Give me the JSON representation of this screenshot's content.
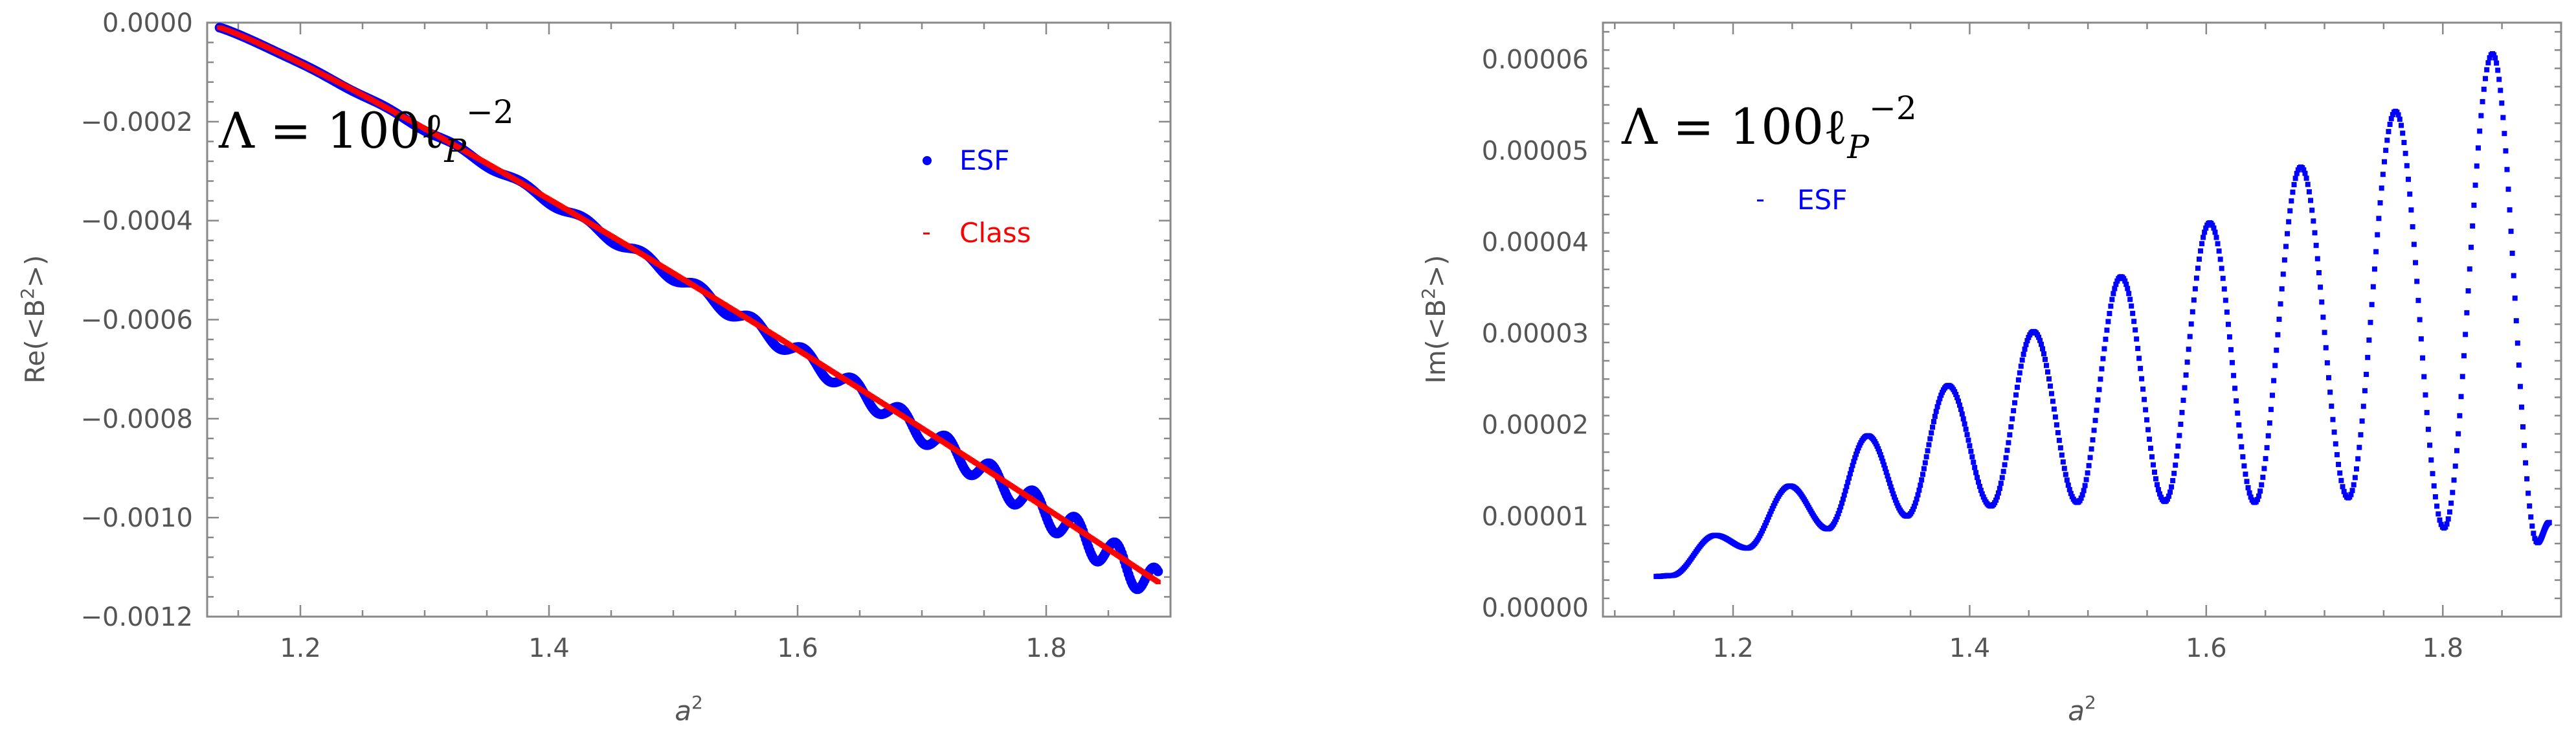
{
  "chart_data": [
    {
      "type": "scatter",
      "xlabel": "a",
      "xlabel_sup": "2",
      "ylabel": "Re(<B",
      "ylabel_sup": "2",
      "ylabel_end": ">)",
      "xlim": [
        1.125,
        1.9
      ],
      "ylim": [
        -0.0012,
        0.0
      ],
      "xticks": [
        1.2,
        1.4,
        1.6,
        1.8
      ],
      "xtick_labels": [
        "1.2",
        "1.4",
        "1.6",
        "1.8"
      ],
      "yticks": [
        0.0,
        -0.0002,
        -0.0004,
        -0.0006,
        -0.0008,
        -0.001,
        -0.0012
      ],
      "ytick_labels": [
        "0.0000",
        "−0.0002",
        "−0.0004",
        "−0.0006",
        "−0.0008",
        "−0.0010",
        "−0.0012"
      ],
      "annotation": {
        "main": "Λ = 100ℓ",
        "sub": "P",
        "sup": "−2"
      },
      "legend_position": "top-right",
      "series": [
        {
          "name": "ESF",
          "color": "#0000ff",
          "marker": "dot",
          "model": {
            "x_start": 1.135,
            "x_end": 1.89,
            "y_start": -1e-05,
            "y_end": -0.00114,
            "osc_amp_at_end": 3.5e-05,
            "osc_growth": 1.6,
            "osc_freq_factor": 28.0
          }
        },
        {
          "name": "Class",
          "color": "#ff0000",
          "marker": "dash",
          "model": {
            "x_start": 1.135,
            "x_end": 1.89,
            "y_start": -1e-05,
            "y_end": -0.00113
          }
        }
      ]
    },
    {
      "type": "scatter",
      "xlabel": "a",
      "xlabel_sup": "2",
      "ylabel": "Im(<B",
      "ylabel_sup": "2",
      "ylabel_end": ">)",
      "xlim": [
        1.09,
        1.9
      ],
      "ylim": [
        -1e-06,
        6.4e-05
      ],
      "xticks": [
        1.2,
        1.4,
        1.6,
        1.8
      ],
      "xtick_labels": [
        "1.2",
        "1.4",
        "1.6",
        "1.8"
      ],
      "yticks": [
        0.0,
        1e-05,
        2e-05,
        3e-05,
        4e-05,
        5e-05,
        6e-05
      ],
      "ytick_labels": [
        "0.00000",
        "0.00001",
        "0.00002",
        "0.00003",
        "0.00004",
        "0.00005",
        "0.00006"
      ],
      "annotation": {
        "main": "Λ = 100ℓ",
        "sub": "P",
        "sup": "−2"
      },
      "legend_position": "top-left",
      "series": [
        {
          "name": "ESF",
          "color": "#0000ff",
          "marker": "dash",
          "peaks": [
            [
              1.185,
              7.9e-06
            ],
            [
              1.248,
              1.33e-05
            ],
            [
              1.314,
              1.88e-05
            ],
            [
              1.382,
              2.43e-05
            ],
            [
              1.454,
              3.02e-05
            ],
            [
              1.528,
              3.62e-05
            ],
            [
              1.603,
              4.21e-05
            ],
            [
              1.68,
              4.82e-05
            ],
            [
              1.76,
              5.43e-05
            ],
            [
              1.842,
              6.06e-05
            ]
          ],
          "troughs": [
            [
              1.148,
              3.5e-06
            ],
            [
              1.212,
              6.5e-06
            ],
            [
              1.28,
              8.6e-06
            ],
            [
              1.347,
              1e-05
            ],
            [
              1.418,
              1.11e-05
            ],
            [
              1.491,
              1.15e-05
            ],
            [
              1.565,
              1.16e-05
            ],
            [
              1.641,
              1.15e-05
            ],
            [
              1.72,
              1.2e-05
            ],
            [
              1.801,
              8.7e-06
            ],
            [
              1.88,
              7.1e-06
            ]
          ],
          "start": [
            1.135,
            3.4e-06
          ],
          "end": [
            1.89,
            9.3e-06
          ]
        }
      ]
    }
  ]
}
